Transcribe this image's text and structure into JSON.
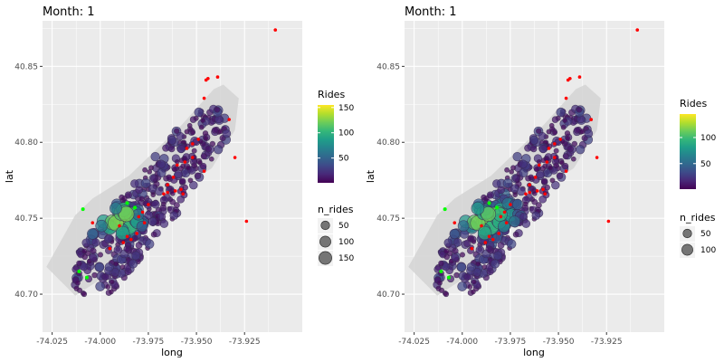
{
  "colors": {
    "panel_bg": "#EBEBEB",
    "grid": "#FFFFFF",
    "hull": "#D3D3D3",
    "dot_fill_low": "#440154",
    "station_outline": "#3B2A55",
    "highlight_red": "#FF0000",
    "highlight_green": "#00FF00",
    "viridis": [
      "#440154",
      "#482878",
      "#3E4A89",
      "#31688E",
      "#26828E",
      "#1F9E89",
      "#35B779",
      "#6DCD59",
      "#B4DE2C",
      "#FDE725"
    ]
  },
  "chart_data": [
    {
      "type": "scatter",
      "title": "Month: 1",
      "xlabel": "long",
      "ylabel": "lat",
      "xlim": [
        -74.03,
        -73.895
      ],
      "ylim": [
        40.675,
        40.88
      ],
      "x_ticks": [
        -74.025,
        -74.0,
        -73.975,
        -73.95,
        -73.925
      ],
      "x_tick_labels": [
        "-74.025",
        "-74.000",
        "-73.975",
        "-73.950",
        "-73.925"
      ],
      "y_ticks": [
        40.7,
        40.75,
        40.8,
        40.85
      ],
      "y_tick_labels": [
        "40.70",
        "40.75",
        "40.80",
        "40.85"
      ],
      "grid": true,
      "color_legend": {
        "title": "Rides",
        "min": 1,
        "max": 155,
        "ticks": [
          50,
          100,
          150
        ],
        "tick_labels": [
          "50",
          "100",
          "150"
        ]
      },
      "size_legend": {
        "title": "n_rides",
        "values": [
          50,
          100,
          150
        ],
        "labels": [
          "50",
          "100",
          "150"
        ]
      },
      "hull_polygon": [
        [
          -74.028,
          40.718
        ],
        [
          -74.013,
          40.752
        ],
        [
          -74.004,
          40.763
        ],
        [
          -73.985,
          40.778
        ],
        [
          -73.958,
          40.811
        ],
        [
          -73.941,
          40.835
        ],
        [
          -73.936,
          40.838
        ],
        [
          -73.928,
          40.829
        ],
        [
          -73.93,
          40.808
        ],
        [
          -73.942,
          40.783
        ],
        [
          -73.955,
          40.772
        ],
        [
          -73.975,
          40.743
        ],
        [
          -73.987,
          40.726
        ],
        [
          -74.002,
          40.708
        ],
        [
          -74.013,
          40.699
        ]
      ],
      "red_points": [
        [
          -73.909,
          40.874
        ],
        [
          -73.939,
          40.843
        ],
        [
          -73.944,
          40.842
        ],
        [
          -73.945,
          40.841
        ],
        [
          -73.933,
          40.815
        ],
        [
          -73.946,
          40.829
        ],
        [
          -73.949,
          40.802
        ],
        [
          -73.952,
          40.799
        ],
        [
          -73.955,
          40.796
        ],
        [
          -73.952,
          40.79
        ],
        [
          -73.956,
          40.787
        ],
        [
          -73.96,
          40.785
        ],
        [
          -73.946,
          40.781
        ],
        [
          -73.93,
          40.79
        ],
        [
          -73.962,
          40.777
        ],
        [
          -73.965,
          40.772
        ],
        [
          -73.958,
          40.769
        ],
        [
          -73.961,
          40.768
        ],
        [
          -73.957,
          40.766
        ],
        [
          -73.965,
          40.767
        ],
        [
          -73.967,
          40.766
        ],
        [
          -73.975,
          40.759
        ],
        [
          -73.978,
          40.754
        ],
        [
          -73.98,
          40.751
        ],
        [
          -73.977,
          40.747
        ],
        [
          -73.981,
          40.74
        ],
        [
          -73.984,
          40.736
        ],
        [
          -73.986,
          40.738
        ],
        [
          -73.988,
          40.734
        ],
        [
          -73.99,
          40.745
        ],
        [
          -74.004,
          40.747
        ],
        [
          -73.995,
          40.73
        ],
        [
          -73.924,
          40.748
        ]
      ],
      "green_points": [
        [
          -74.009,
          40.756
        ],
        [
          -74.011,
          40.715
        ],
        [
          -74.007,
          40.711
        ],
        [
          -73.982,
          40.757
        ],
        [
          -73.986,
          40.76
        ]
      ],
      "dense_centers": [
        [
          -73.99,
          40.748,
          24
        ],
        [
          -73.984,
          40.748,
          26
        ],
        [
          -73.995,
          40.752,
          20
        ],
        [
          -74.003,
          40.743,
          14
        ]
      ]
    },
    {
      "type": "scatter",
      "title": "Month: 1",
      "xlabel": "long",
      "ylabel": "lat",
      "xlim": [
        -74.03,
        -73.895
      ],
      "ylim": [
        40.675,
        40.88
      ],
      "x_ticks": [
        -74.025,
        -74.0,
        -73.975,
        -73.95,
        -73.925
      ],
      "x_tick_labels": [
        "-74.025",
        "-74.000",
        "-73.975",
        "-73.950",
        "-73.925"
      ],
      "y_ticks": [
        40.7,
        40.75,
        40.8,
        40.85
      ],
      "y_tick_labels": [
        "40.70",
        "40.75",
        "40.80",
        "40.85"
      ],
      "grid": true,
      "color_legend": {
        "title": "Rides",
        "min": 1,
        "max": 145,
        "ticks": [
          50,
          100
        ],
        "tick_labels": [
          "50",
          "100"
        ]
      },
      "size_legend": {
        "title": "n_rides",
        "values": [
          50,
          100
        ],
        "labels": [
          "50",
          "100"
        ]
      },
      "hull_polygon": [
        [
          -74.028,
          40.718
        ],
        [
          -74.013,
          40.752
        ],
        [
          -74.004,
          40.763
        ],
        [
          -73.985,
          40.778
        ],
        [
          -73.958,
          40.811
        ],
        [
          -73.941,
          40.835
        ],
        [
          -73.936,
          40.838
        ],
        [
          -73.928,
          40.829
        ],
        [
          -73.93,
          40.808
        ],
        [
          -73.942,
          40.783
        ],
        [
          -73.955,
          40.772
        ],
        [
          -73.975,
          40.743
        ],
        [
          -73.987,
          40.726
        ],
        [
          -74.002,
          40.708
        ],
        [
          -74.013,
          40.699
        ]
      ],
      "red_points": [
        [
          -73.909,
          40.874
        ],
        [
          -73.939,
          40.843
        ],
        [
          -73.944,
          40.842
        ],
        [
          -73.945,
          40.841
        ],
        [
          -73.933,
          40.815
        ],
        [
          -73.946,
          40.829
        ],
        [
          -73.949,
          40.802
        ],
        [
          -73.952,
          40.799
        ],
        [
          -73.955,
          40.796
        ],
        [
          -73.952,
          40.79
        ],
        [
          -73.956,
          40.787
        ],
        [
          -73.96,
          40.785
        ],
        [
          -73.946,
          40.781
        ],
        [
          -73.93,
          40.79
        ],
        [
          -73.962,
          40.777
        ],
        [
          -73.965,
          40.772
        ],
        [
          -73.958,
          40.769
        ],
        [
          -73.961,
          40.768
        ],
        [
          -73.957,
          40.766
        ],
        [
          -73.965,
          40.767
        ],
        [
          -73.967,
          40.766
        ],
        [
          -73.975,
          40.759
        ],
        [
          -73.978,
          40.754
        ],
        [
          -73.98,
          40.751
        ],
        [
          -73.977,
          40.747
        ],
        [
          -73.981,
          40.74
        ],
        [
          -73.984,
          40.736
        ],
        [
          -73.986,
          40.738
        ],
        [
          -73.988,
          40.734
        ],
        [
          -73.99,
          40.745
        ],
        [
          -74.004,
          40.747
        ],
        [
          -73.995,
          40.73
        ],
        [
          -73.924,
          40.748
        ]
      ],
      "green_points": [
        [
          -74.009,
          40.756
        ],
        [
          -74.011,
          40.715
        ],
        [
          -74.007,
          40.711
        ],
        [
          -73.982,
          40.757
        ],
        [
          -73.986,
          40.76
        ]
      ],
      "dense_centers": [
        [
          -73.978,
          40.754,
          26
        ],
        [
          -73.99,
          40.75,
          22
        ],
        [
          -73.996,
          40.752,
          18
        ],
        [
          -74.005,
          40.744,
          14
        ],
        [
          -73.985,
          40.744,
          20
        ]
      ]
    }
  ]
}
